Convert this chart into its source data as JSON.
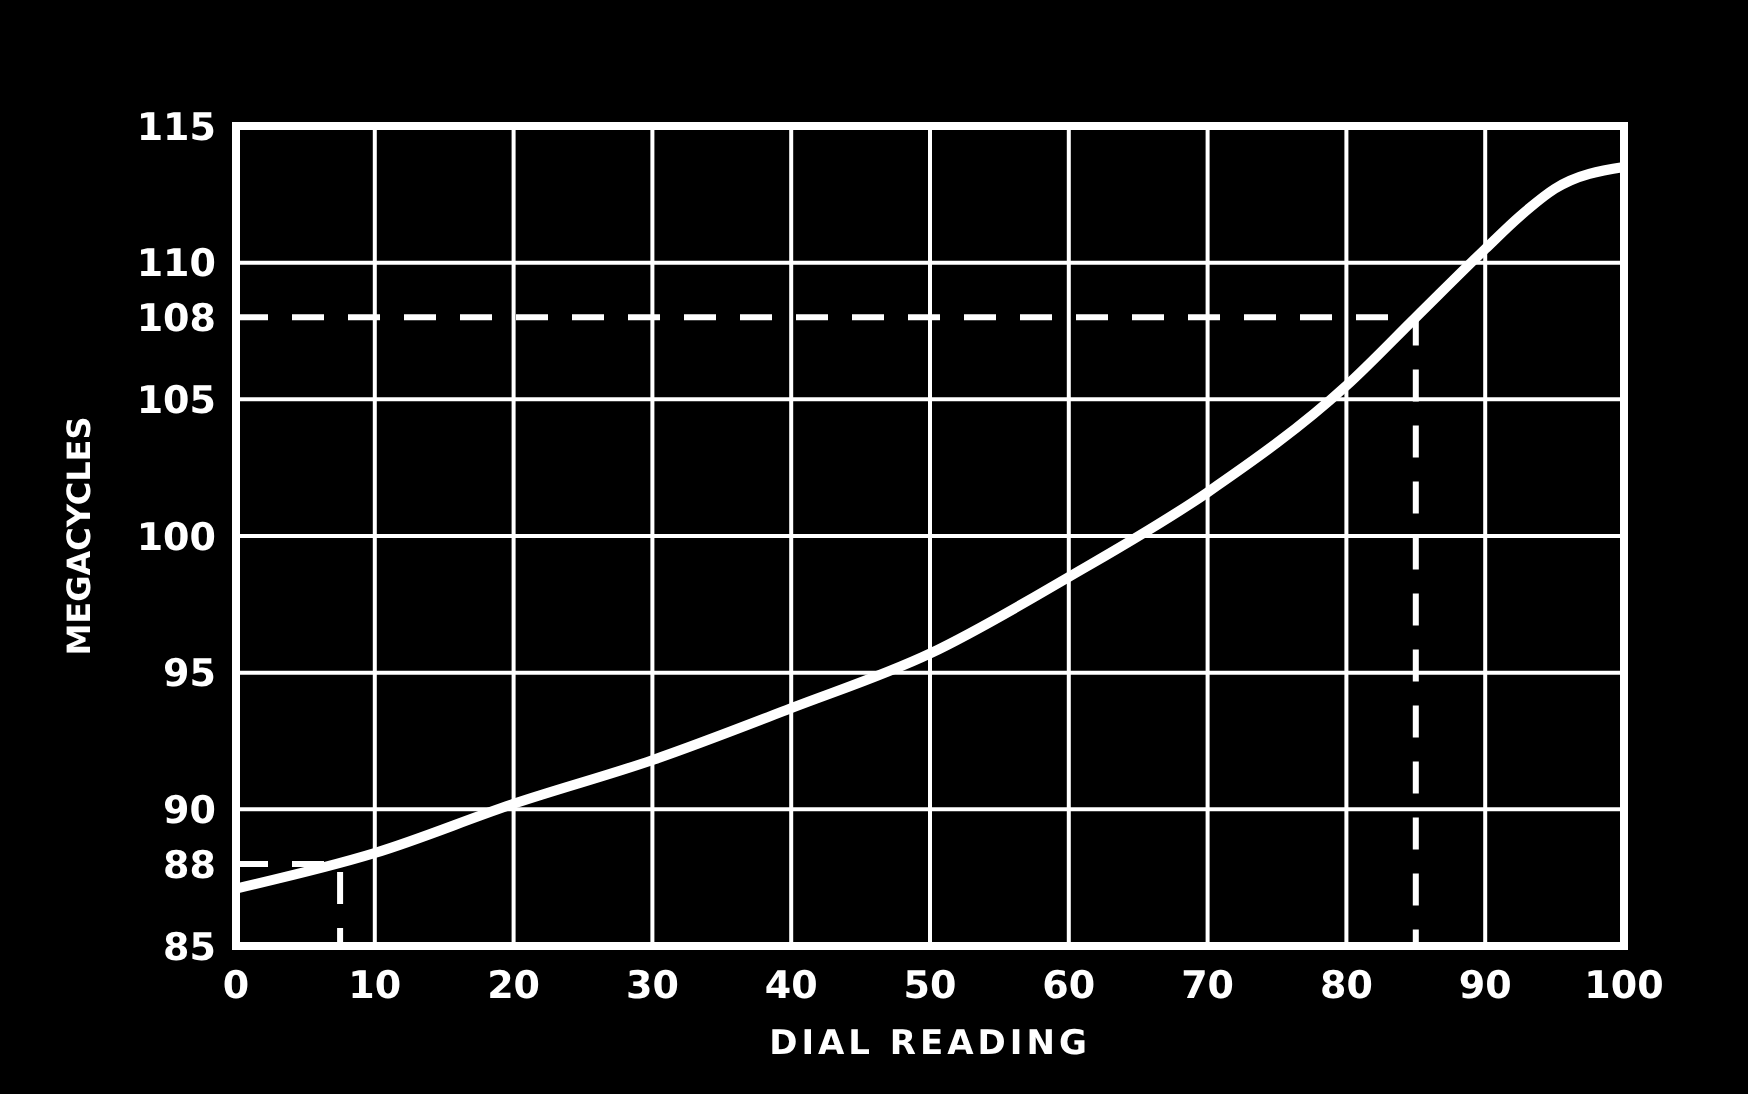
{
  "chart_data": {
    "type": "line",
    "xlabel": "DIAL READING",
    "ylabel": "MEGACYCLES",
    "series": [
      {
        "color": "#ffffff",
        "x": [
          0,
          10,
          20,
          30,
          40,
          50,
          60,
          70,
          80,
          85,
          90,
          92.5,
          95,
          100
        ],
        "values": [
          87.1,
          88.4,
          90.2,
          91.8,
          93.7,
          95.7,
          98.5,
          101.6,
          105.5,
          108,
          110.5,
          111.7,
          112.7,
          113.5
        ]
      },
      {
        "color": "#ffffff",
        "line_style": "dashed",
        "x": [
          0,
          7.5,
          7.5
        ],
        "values": [
          88,
          88,
          85
        ]
      },
      {
        "color": "#ffffff",
        "line_style": "dashed",
        "x": [
          0,
          85,
          85
        ],
        "values": [
          108,
          108,
          85
        ]
      }
    ],
    "xlim": [
      0,
      100
    ],
    "xticks": [
      0,
      10,
      20,
      30,
      40,
      50,
      60,
      70,
      80,
      90,
      100
    ],
    "ylim": [
      85,
      115
    ],
    "yticks": [
      85,
      88,
      90,
      95,
      100,
      105,
      108,
      110,
      115
    ],
    "grid": true,
    "marker": "none",
    "line_style": "solid"
  }
}
